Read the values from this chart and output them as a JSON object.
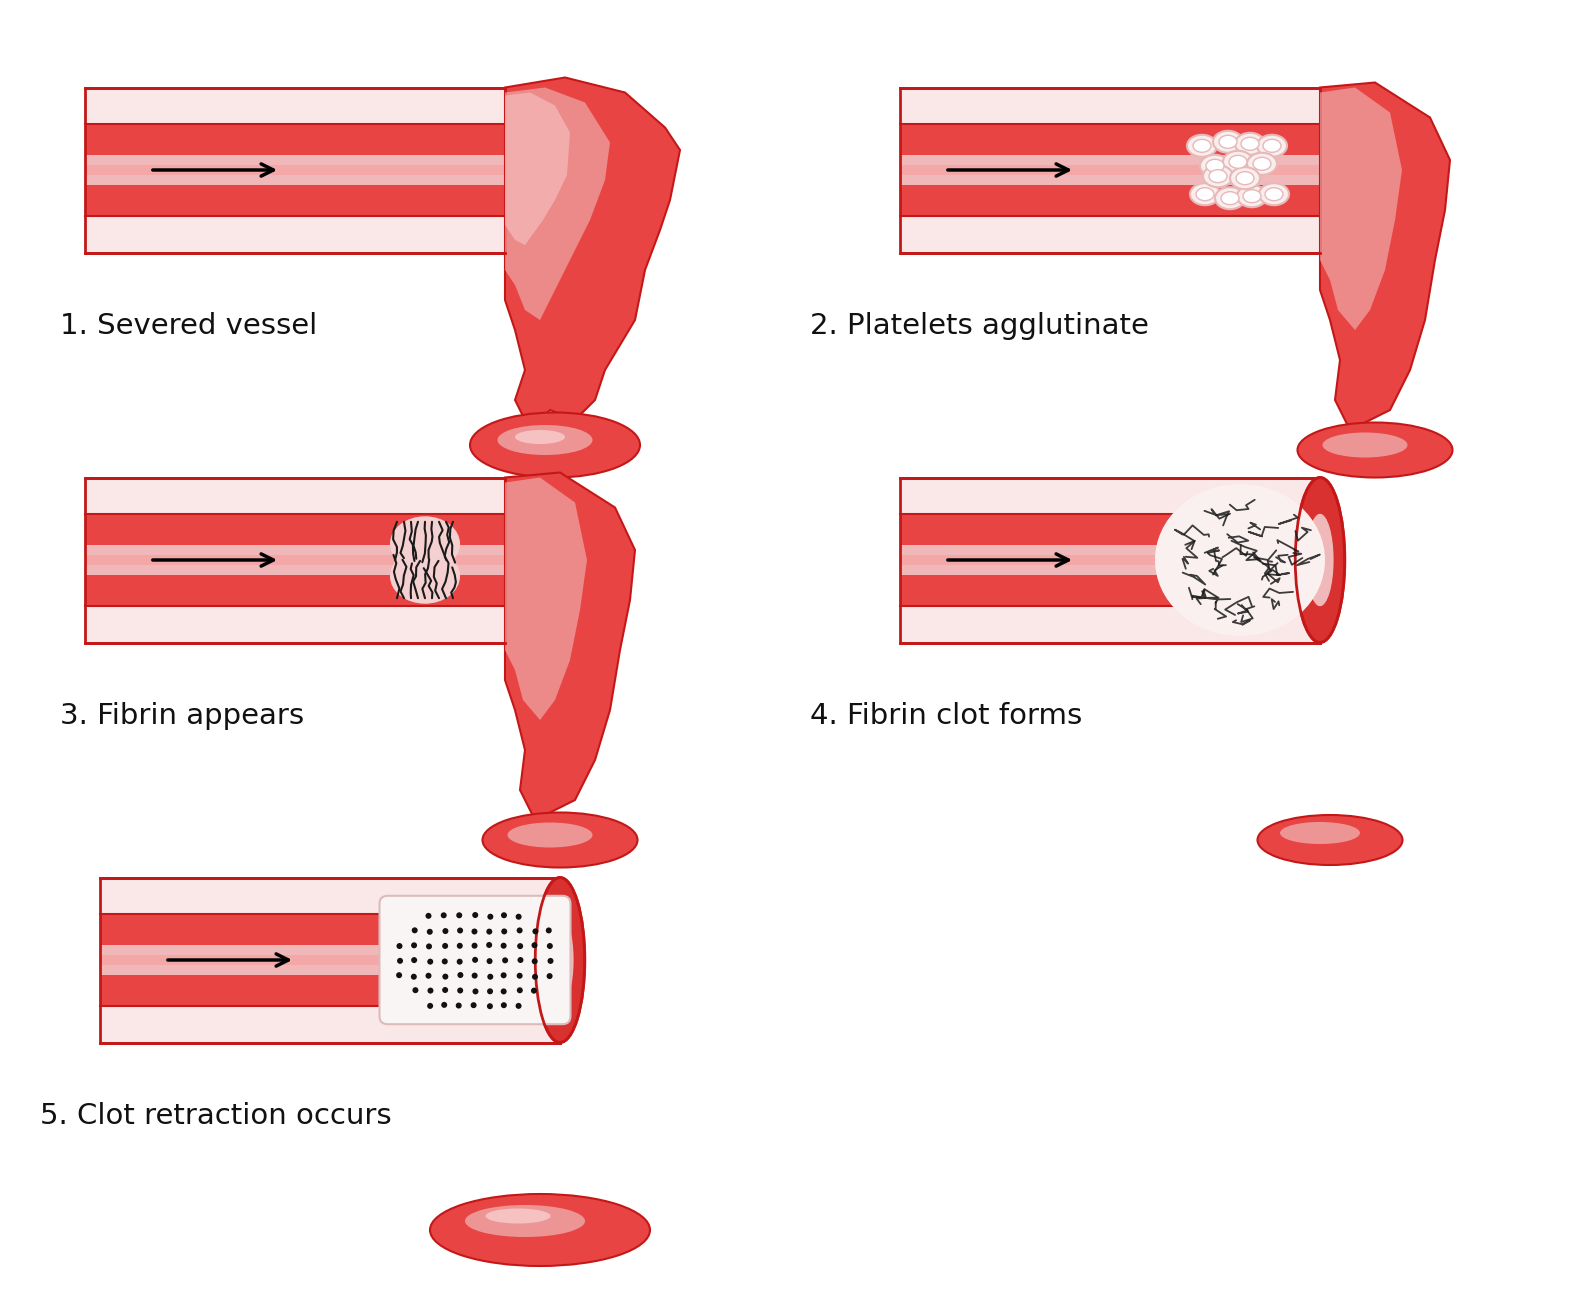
{
  "labels": [
    "1. Severed vessel",
    "2. Platelets agglutinate",
    "3. Fibrin appears",
    "4. Fibrin clot forms",
    "5. Clot retraction occurs"
  ],
  "bg_color": "#ffffff",
  "vessel_dark_red": "#c41818",
  "vessel_mid_red": "#d93030",
  "vessel_bright_red": "#e84444",
  "vessel_lumen_pink": "#f0b8b8",
  "vessel_wall_light": "#f5d0d0",
  "vessel_wall_pale": "#fae8e8",
  "blood_dark": "#b81010",
  "highlight_pink": "#f5c0c0",
  "platelet_fill": "#f8eeee",
  "platelet_ring": "#e8b8b8",
  "fibrin_dark": "#1a1a1a",
  "dot_dark": "#111111",
  "label_fontsize": 21,
  "label_color": "#111111"
}
